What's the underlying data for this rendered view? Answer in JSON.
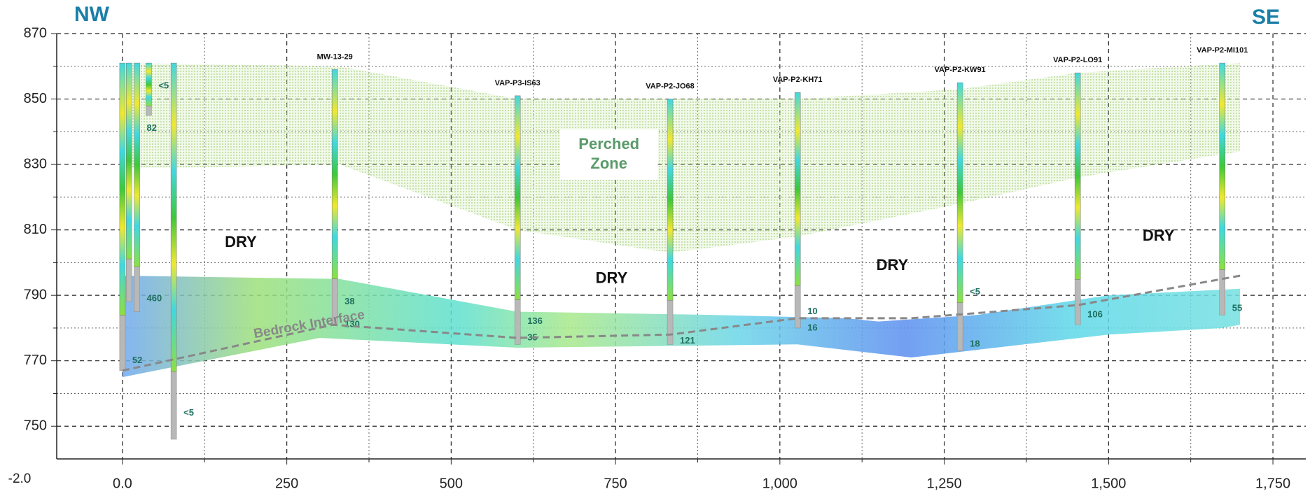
{
  "chart_data": {
    "type": "cross-section",
    "corner_left": "NW",
    "corner_right": "SE",
    "xlim": [
      -100,
      1800
    ],
    "ylim": [
      740,
      870
    ],
    "xticks": [
      {
        "value": 0,
        "label": "0.0"
      },
      250,
      500,
      750,
      {
        "value": 1000,
        "label": "1,000"
      },
      {
        "value": 1250,
        "label": "1,250"
      },
      {
        "value": 1500,
        "label": "1,500"
      },
      {
        "value": 1750,
        "label": "1,750"
      }
    ],
    "xticks_minor": [
      125,
      375,
      625,
      875,
      1125,
      1375,
      1625
    ],
    "yticks": [
      750,
      770,
      790,
      810,
      830,
      850,
      870
    ],
    "yticks_minor": [
      760,
      780,
      800,
      820,
      840,
      860
    ],
    "corner_label": "-2.0",
    "grid": true,
    "perched_zone": {
      "label_lines": [
        "Perched",
        "Zone"
      ],
      "label_x": 740,
      "label_y": 833,
      "color": "#c8e6a8",
      "x": [
        0,
        330,
        601,
        1027,
        1274,
        1453,
        1700,
        1700,
        1453,
        1274,
        1027,
        833,
        601,
        330,
        100,
        0
      ],
      "y": [
        861,
        860,
        850,
        850,
        853,
        858,
        861,
        834,
        826,
        818,
        808,
        803,
        810,
        830,
        829,
        829
      ]
    },
    "saturated_zone": {
      "x": [
        0,
        330,
        600,
        900,
        1100,
        1150,
        1300,
        1500,
        1700,
        1700,
        1673,
        1500,
        1200,
        1027,
        600,
        300,
        0
      ],
      "y": [
        796,
        795,
        785,
        784,
        783,
        782,
        784,
        790,
        792,
        781,
        780,
        778,
        771,
        775,
        774,
        777,
        765
      ]
    },
    "bedrock": {
      "label": "Bedrock Interface",
      "label_x": 200,
      "label_y": 778,
      "color": "#888888",
      "x": [
        0,
        320,
        600,
        833,
        1027,
        1200,
        1453,
        1700
      ],
      "y": [
        767,
        781,
        777,
        778,
        783,
        783,
        787,
        796
      ]
    },
    "dry_labels": [
      {
        "text": "DRY",
        "x": 180,
        "y": 806
      },
      {
        "text": "DRY",
        "x": 744,
        "y": 795
      },
      {
        "text": "DRY",
        "x": 1171,
        "y": 799
      },
      {
        "text": "DRY",
        "x": 1576,
        "y": 808
      }
    ],
    "wells": [
      {
        "name": null,
        "x": 0,
        "top": 861,
        "bottom": 767,
        "labels": [
          {
            "text": "52",
            "y": 770
          }
        ]
      },
      {
        "name": null,
        "x": 10,
        "top": 861,
        "bottom": 788,
        "labels": []
      },
      {
        "name": null,
        "x": 22,
        "top": 861,
        "bottom": 785,
        "labels": [
          {
            "text": "460",
            "y": 789
          },
          {
            "text": "82",
            "y": 841
          }
        ]
      },
      {
        "name": null,
        "x": 40,
        "top": 861,
        "bottom": 845,
        "labels": [
          {
            "text": "<5",
            "y": 854
          }
        ]
      },
      {
        "name": null,
        "x": 78,
        "top": 861,
        "bottom": 746,
        "labels": [
          {
            "text": "<5",
            "y": 754
          }
        ]
      },
      {
        "name": "MW-13-29",
        "x": 323,
        "top": 859,
        "bottom": 781,
        "labels": [
          {
            "text": "38",
            "y": 788
          },
          {
            "text": "130",
            "y": 781
          }
        ]
      },
      {
        "name": "VAP-P3-IS63",
        "x": 601,
        "top": 851,
        "bottom": 775,
        "labels": [
          {
            "text": "136",
            "y": 782
          },
          {
            "text": "35",
            "y": 777
          }
        ]
      },
      {
        "name": "VAP-P2-JO68",
        "x": 833,
        "top": 850,
        "bottom": 775,
        "labels": [
          {
            "text": "121",
            "y": 776
          }
        ]
      },
      {
        "name": "VAP-P2-KH71",
        "x": 1027,
        "top": 852,
        "bottom": 780,
        "labels": [
          {
            "text": "10",
            "y": 785
          },
          {
            "text": "16",
            "y": 780
          }
        ]
      },
      {
        "name": "VAP-P2-KW91",
        "x": 1274,
        "top": 855,
        "bottom": 773,
        "labels": [
          {
            "text": "<5",
            "y": 791
          },
          {
            "text": "18",
            "y": 775
          }
        ]
      },
      {
        "name": "VAP-P2-LO91",
        "x": 1453,
        "top": 858,
        "bottom": 781,
        "labels": [
          {
            "text": "106",
            "y": 784
          }
        ]
      },
      {
        "name": "VAP-P2-MI101",
        "x": 1673,
        "top": 861,
        "bottom": 784,
        "labels": [
          {
            "text": "55",
            "y": 786
          }
        ]
      }
    ]
  }
}
